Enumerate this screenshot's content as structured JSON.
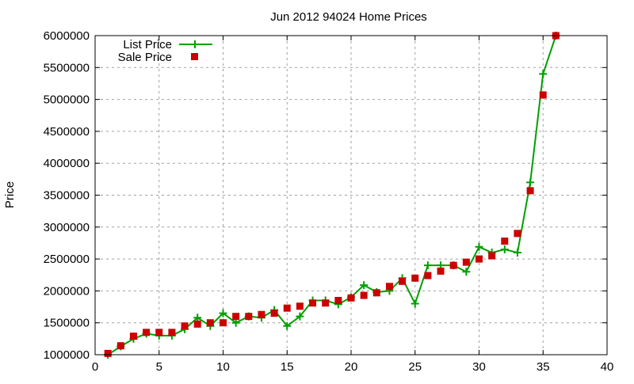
{
  "chart_data": {
    "type": "line",
    "title": "Jun 2012 94024 Home Prices",
    "xlabel": "",
    "ylabel": "Price",
    "xlim": [
      0,
      40
    ],
    "ylim": [
      1000000,
      6000000
    ],
    "xticks": [
      0,
      5,
      10,
      15,
      20,
      25,
      30,
      35,
      40
    ],
    "yticks": [
      1000000,
      1500000,
      2000000,
      2500000,
      3000000,
      3500000,
      4000000,
      4500000,
      5000000,
      5500000,
      6000000
    ],
    "grid": true,
    "legend_position": "top-left",
    "x": [
      1,
      2,
      3,
      4,
      5,
      6,
      7,
      8,
      9,
      10,
      11,
      12,
      13,
      14,
      15,
      16,
      17,
      18,
      19,
      20,
      21,
      22,
      23,
      24,
      25,
      26,
      27,
      28,
      29,
      30,
      31,
      32,
      33,
      34,
      35,
      36
    ],
    "series": [
      {
        "name": "List Price",
        "style": "linespoints",
        "marker": "plus",
        "color": "#00a000",
        "values": [
          1000000,
          1130000,
          1250000,
          1330000,
          1300000,
          1300000,
          1400000,
          1580000,
          1450000,
          1650000,
          1500000,
          1600000,
          1580000,
          1700000,
          1450000,
          1600000,
          1850000,
          1850000,
          1790000,
          1900000,
          2090000,
          1980000,
          2000000,
          2200000,
          1800000,
          2400000,
          2400000,
          2400000,
          2300000,
          2690000,
          2600000,
          2650000,
          2600000,
          3700000,
          5400000,
          6000000
        ]
      },
      {
        "name": "Sale Price",
        "style": "points",
        "marker": "square",
        "color": "#cc0000",
        "values": [
          1020000,
          1140000,
          1290000,
          1350000,
          1350000,
          1350000,
          1450000,
          1480000,
          1500000,
          1500000,
          1600000,
          1600000,
          1630000,
          1650000,
          1730000,
          1760000,
          1810000,
          1810000,
          1850000,
          1890000,
          1930000,
          1970000,
          2070000,
          2150000,
          2200000,
          2240000,
          2310000,
          2400000,
          2450000,
          2500000,
          2550000,
          2780000,
          2900000,
          3570000,
          5070000,
          6000000
        ]
      }
    ]
  }
}
